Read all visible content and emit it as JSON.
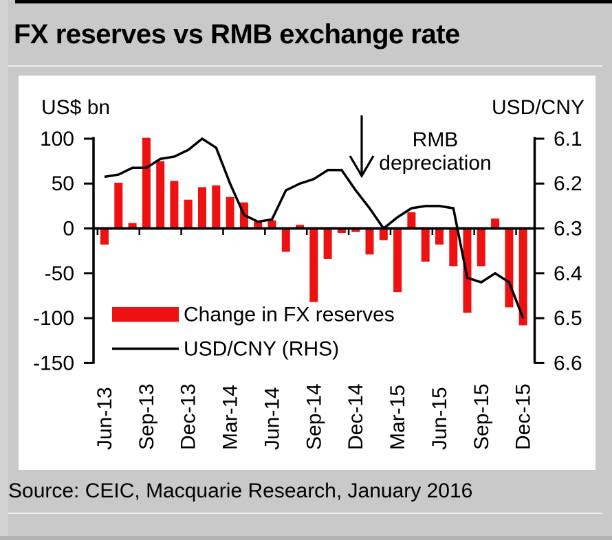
{
  "chart_data": {
    "type": "bar+line",
    "title": "FX reserves vs RMB exchange rate",
    "x": [
      "Jun-13",
      "Jul-13",
      "Aug-13",
      "Sep-13",
      "Oct-13",
      "Nov-13",
      "Dec-13",
      "Jan-14",
      "Feb-14",
      "Mar-14",
      "Apr-14",
      "May-14",
      "Jun-14",
      "Jul-14",
      "Aug-14",
      "Sep-14",
      "Oct-14",
      "Nov-14",
      "Dec-14",
      "Jan-15",
      "Feb-15",
      "Mar-15",
      "Apr-15",
      "May-15",
      "Jun-15",
      "Jul-15",
      "Aug-15",
      "Sep-15",
      "Oct-15",
      "Nov-15",
      "Dec-15"
    ],
    "x_tick_labels": [
      "Jun-13",
      "Sep-13",
      "Dec-13",
      "Mar-14",
      "Jun-14",
      "Sep-14",
      "Dec-14",
      "Mar-15",
      "Jun-15",
      "Sep-15",
      "Dec-15"
    ],
    "series": [
      {
        "name": "Change in FX reserves",
        "type": "bar",
        "axis": "left",
        "color": "#ee1111",
        "values": [
          -18,
          51,
          6,
          101,
          75,
          53,
          32,
          46,
          48,
          35,
          29,
          8,
          9,
          -26,
          4,
          -82,
          -34,
          -5,
          -4,
          -29,
          -13,
          -71,
          18,
          -37,
          -18,
          -42,
          -94,
          -42,
          11,
          -88,
          -108
        ]
      },
      {
        "name": "USD/CNY (RHS)",
        "type": "line",
        "axis": "right",
        "color": "#000000",
        "values": [
          6.185,
          6.18,
          6.165,
          6.165,
          6.145,
          6.14,
          6.125,
          6.1,
          6.12,
          6.2,
          6.27,
          6.285,
          6.28,
          6.215,
          6.2,
          6.19,
          6.17,
          6.17,
          6.215,
          6.255,
          6.3,
          6.275,
          6.255,
          6.25,
          6.25,
          6.255,
          6.41,
          6.42,
          6.4,
          6.42,
          6.5
        ]
      }
    ],
    "left_axis": {
      "title": "US$ bn",
      "ticks": [
        100,
        50,
        0,
        -50,
        -100,
        -150
      ],
      "max": 100,
      "min": -150
    },
    "right_axis": {
      "title": "USD/CNY",
      "ticks": [
        6.1,
        6.2,
        6.3,
        6.4,
        6.5,
        6.6
      ],
      "max": 6.6,
      "min": 6.1,
      "inverted": true
    },
    "annotation": {
      "lines": [
        "RMB",
        "depreciation"
      ],
      "arrow": "down"
    },
    "legend": {
      "position": "inside-bottom-left",
      "entries": [
        "Change in FX reserves",
        "USD/CNY (RHS)"
      ]
    },
    "grid": false
  },
  "footer": {
    "source": "Source: CEIC, Macquarie Research, January 2016"
  },
  "colors": {
    "page_background": "#c9c9c9",
    "panel_background": "#ffffff",
    "bar": "#ee1111",
    "line": "#000000",
    "top_bar": "#000000"
  }
}
